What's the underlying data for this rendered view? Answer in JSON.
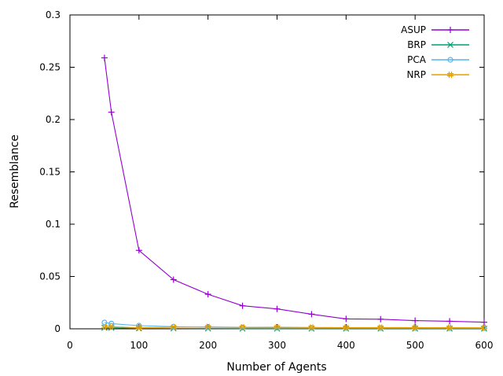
{
  "chart_data": {
    "type": "line",
    "title": "",
    "xlabel": "Number of Agents",
    "ylabel": "Resemblance",
    "xlim": [
      0,
      600
    ],
    "ylim": [
      0,
      0.3
    ],
    "xticks": [
      "0",
      "100",
      "200",
      "300",
      "400",
      "500",
      "600"
    ],
    "yticks": [
      "0",
      "0.05",
      "0.1",
      "0.15",
      "0.2",
      "0.25",
      "0.3"
    ],
    "grid": false,
    "legend_position": "top-right",
    "x": [
      50,
      60,
      100,
      150,
      200,
      250,
      300,
      350,
      400,
      450,
      500,
      550,
      600
    ],
    "series": [
      {
        "name": "ASUP",
        "color": "#9400d3",
        "marker": "+",
        "values": [
          0.259,
          0.207,
          0.075,
          0.047,
          0.033,
          0.022,
          0.019,
          0.014,
          0.0095,
          0.0092,
          0.0078,
          0.0072,
          0.0063
        ]
      },
      {
        "name": "BRP",
        "color": "#009e73",
        "marker": "x",
        "values": [
          0.001,
          0.001,
          0.0005,
          0.0004,
          0.0003,
          0.0002,
          0.0002,
          0.0002,
          0.0002,
          0.0002,
          0.0002,
          0.0002,
          0.0002
        ]
      },
      {
        "name": "PCA",
        "color": "#56b4e9",
        "marker": "o",
        "values": [
          0.006,
          0.005,
          0.003,
          0.002,
          0.0015,
          0.0012,
          0.001,
          0.0009,
          0.0008,
          0.0007,
          0.0007,
          0.0006,
          0.0006
        ]
      },
      {
        "name": "NRP",
        "color": "#e69f00",
        "marker": "#",
        "values": [
          0.002,
          0.002,
          0.001,
          0.0015,
          0.0018,
          0.0015,
          0.0016,
          0.0013,
          0.0012,
          0.0012,
          0.0011,
          0.0011,
          0.001
        ]
      }
    ]
  }
}
